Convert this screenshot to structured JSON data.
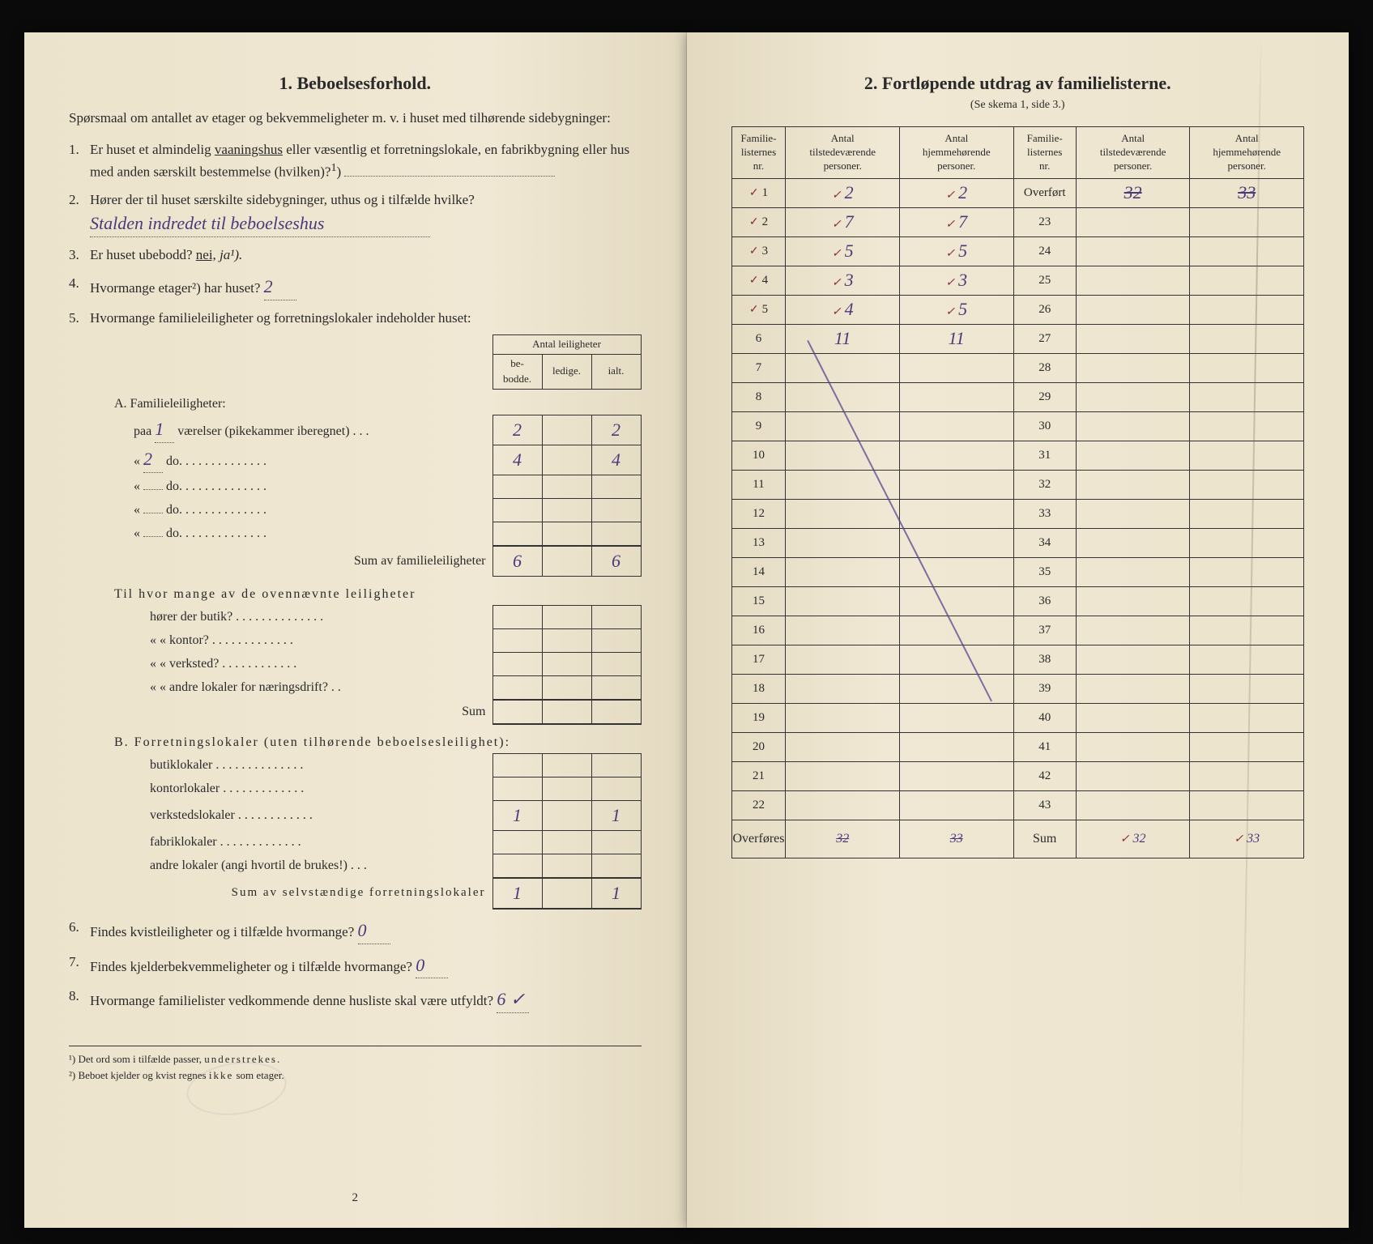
{
  "left": {
    "title": "1.   Beboelsesforhold.",
    "intro": "Spørsmaal om antallet av etager og bekvemmeligheter m. v. i huset med tilhørende sidebygninger:",
    "q1": "Er huset et almindelig vaaningshus eller væsentlig et forretningslokale, en fabrikbygning eller hus med anden særskilt bestemmelse (hvilken)?¹)",
    "q1_underlined": "vaaningshus",
    "q2": "Hører der til huset særskilte sidebygninger, uthus og i tilfælde hvilke?",
    "q2_hw": "Stalden indredet til beboelseshus",
    "q3_pre": "Er huset ubebodd?  ",
    "q3_nei": "nei,",
    "q3_ja": " ja¹).",
    "q4_pre": "Hvormange etager²) har huset?",
    "q4_hw": "2",
    "q5": "Hvormange familieleiligheter og forretningslokaler indeholder huset:",
    "apt_header_group": "Antal leiligheter",
    "apt_h1": "be-\nbodde.",
    "apt_h2": "ledige.",
    "apt_h3": "ialt.",
    "A_title": "A. Familieleiligheter:",
    "A_rows": [
      {
        "label_pre": "paa ",
        "hw": "1",
        "label_post": " værelser (pikekammer iberegnet)  .  .  .",
        "v1": "2",
        "v2": "",
        "v3": "2"
      },
      {
        "label_pre": "«    ",
        "hw": "2",
        "label_post": "     do.     .  .  .  .  .  .  .  .  .  .  .  .  .",
        "v1": "4",
        "v2": "",
        "v3": "4"
      },
      {
        "label_pre": "«    ",
        "hw": "",
        "label_post": "     do.     .  .  .  .  .  .  .  .  .  .  .  .  .",
        "v1": "",
        "v2": "",
        "v3": ""
      },
      {
        "label_pre": "«    ",
        "hw": "",
        "label_post": "     do.     .  .  .  .  .  .  .  .  .  .  .  .  .",
        "v1": "",
        "v2": "",
        "v3": ""
      },
      {
        "label_pre": "«    ",
        "hw": "",
        "label_post": "     do.     .  .  .  .  .  .  .  .  .  .  .  .  .",
        "v1": "",
        "v2": "",
        "v3": ""
      }
    ],
    "A_sum_label": "Sum av familieleiligheter",
    "A_sum": {
      "v1": "6",
      "v2": "",
      "v3": "6"
    },
    "A_sub_q": "Til hvor mange av de ovennævnte leiligheter",
    "A_sub_rows": [
      {
        "label": "hører der butik? .  .  .  .  .  .  .  .  .  .  .  .  .  .",
        "v1": "",
        "v2": "",
        "v3": ""
      },
      {
        "label": "«     «   kontor? .  .  .  .  .  .  .  .  .  .  .  .  .",
        "v1": "",
        "v2": "",
        "v3": ""
      },
      {
        "label": "«     «   verksted? .  .  .  .  .  .  .  .  .  .  .  .",
        "v1": "",
        "v2": "",
        "v3": ""
      },
      {
        "label": "«     «   andre lokaler for næringsdrift?  .  .",
        "v1": "",
        "v2": "",
        "v3": ""
      }
    ],
    "A_sub_sum_label": "Sum",
    "B_title": "B. Forretningslokaler (uten tilhørende beboelsesleilighet):",
    "B_rows": [
      {
        "label": "butiklokaler  .  .  .  .  .  .  .  .  .  .  .  .  .  .",
        "v1": "",
        "v2": "",
        "v3": ""
      },
      {
        "label": "kontorlokaler  .  .  .  .  .  .  .  .  .  .  .  .  .",
        "v1": "",
        "v2": "",
        "v3": ""
      },
      {
        "label": "verkstedslokaler  .  .  .  .  .  .  .  .  .  .  .  .",
        "v1": "1",
        "v2": "",
        "v3": "1"
      },
      {
        "label": "fabriklokaler  .  .  .  .  .  .  .  .  .  .  .  .  .",
        "v1": "",
        "v2": "",
        "v3": ""
      },
      {
        "label": "andre lokaler (angi hvortil de brukes!)  .  .  .",
        "v1": "",
        "v2": "",
        "v3": ""
      }
    ],
    "B_sum_label": "Sum av selvstændige forretningslokaler",
    "B_sum": {
      "v1": "1",
      "v2": "",
      "v3": "1"
    },
    "q6_pre": "Findes kvistleiligheter og i tilfælde hvormange?",
    "q6_hw": "0",
    "q7_pre": "Findes kjelderbekvemmeligheter og i tilfælde hvormange?",
    "q7_hw": "0",
    "q8_pre": "Hvormange familielister vedkommende denne husliste skal være utfyldt?",
    "q8_hw": "6 ✓",
    "fn1": "¹) Det ord som i tilfælde passer, understrekes.",
    "fn2": "²) Beboet kjelder og kvist regnes ikke som etager.",
    "page_num": "2"
  },
  "right": {
    "title": "2.   Fortløpende utdrag av familielisterne.",
    "sub": "(Se skema 1, side 3.)",
    "h1": "Familie-\nlisternes\nnr.",
    "h2": "Antal\ntilstedeværende\npersoner.",
    "h3": "Antal\nhjemmehørende\npersoner.",
    "h4": "Familie-\nlisternes\nnr.",
    "h5": "Antal\ntilstedeværende\npersoner.",
    "h6": "Antal\nhjemmehørende\npersoner.",
    "rows_left": [
      {
        "n": "1",
        "a": "2",
        "b": "2",
        "tick": true
      },
      {
        "n": "2",
        "a": "7",
        "b": "7",
        "tick": true
      },
      {
        "n": "3",
        "a": "5",
        "b": "5",
        "tick": true
      },
      {
        "n": "4",
        "a": "3",
        "b": "3",
        "tick": true
      },
      {
        "n": "5",
        "a": "4",
        "b": "5",
        "tick": true
      },
      {
        "n": "6",
        "a": "11",
        "b": "11",
        "tick": false
      },
      {
        "n": "7",
        "a": "",
        "b": "",
        "tick": false
      },
      {
        "n": "8",
        "a": "",
        "b": "",
        "tick": false
      },
      {
        "n": "9",
        "a": "",
        "b": "",
        "tick": false
      },
      {
        "n": "10",
        "a": "",
        "b": "",
        "tick": false
      },
      {
        "n": "11",
        "a": "",
        "b": "",
        "tick": false
      },
      {
        "n": "12",
        "a": "",
        "b": "",
        "tick": false
      },
      {
        "n": "13",
        "a": "",
        "b": "",
        "tick": false
      },
      {
        "n": "14",
        "a": "",
        "b": "",
        "tick": false
      },
      {
        "n": "15",
        "a": "",
        "b": "",
        "tick": false
      },
      {
        "n": "16",
        "a": "",
        "b": "",
        "tick": false
      },
      {
        "n": "17",
        "a": "",
        "b": "",
        "tick": false
      },
      {
        "n": "18",
        "a": "",
        "b": "",
        "tick": false
      },
      {
        "n": "19",
        "a": "",
        "b": "",
        "tick": false
      },
      {
        "n": "20",
        "a": "",
        "b": "",
        "tick": false
      },
      {
        "n": "21",
        "a": "",
        "b": "",
        "tick": false
      },
      {
        "n": "22",
        "a": "",
        "b": "",
        "tick": false
      }
    ],
    "rows_right": [
      {
        "n": "Overført",
        "a": "32",
        "b": "33",
        "strike": true
      },
      {
        "n": "23",
        "a": "",
        "b": ""
      },
      {
        "n": "24",
        "a": "",
        "b": ""
      },
      {
        "n": "25",
        "a": "",
        "b": ""
      },
      {
        "n": "26",
        "a": "",
        "b": ""
      },
      {
        "n": "27",
        "a": "",
        "b": ""
      },
      {
        "n": "28",
        "a": "",
        "b": ""
      },
      {
        "n": "29",
        "a": "",
        "b": ""
      },
      {
        "n": "30",
        "a": "",
        "b": ""
      },
      {
        "n": "31",
        "a": "",
        "b": ""
      },
      {
        "n": "32",
        "a": "",
        "b": ""
      },
      {
        "n": "33",
        "a": "",
        "b": ""
      },
      {
        "n": "34",
        "a": "",
        "b": ""
      },
      {
        "n": "35",
        "a": "",
        "b": ""
      },
      {
        "n": "36",
        "a": "",
        "b": ""
      },
      {
        "n": "37",
        "a": "",
        "b": ""
      },
      {
        "n": "38",
        "a": "",
        "b": ""
      },
      {
        "n": "39",
        "a": "",
        "b": ""
      },
      {
        "n": "40",
        "a": "",
        "b": ""
      },
      {
        "n": "41",
        "a": "",
        "b": ""
      },
      {
        "n": "42",
        "a": "",
        "b": ""
      },
      {
        "n": "43",
        "a": "",
        "b": ""
      }
    ],
    "overfores_label": "Overføres",
    "overfores_a": "32",
    "overfores_b": "33",
    "sum_label": "Sum",
    "sum_a": "32",
    "sum_b": "33"
  },
  "colors": {
    "paper": "#f0e8d4",
    "ink": "#2a2a2a",
    "handwriting_blue": "#4a3a7a",
    "handwriting_red": "#8a2a3a"
  }
}
